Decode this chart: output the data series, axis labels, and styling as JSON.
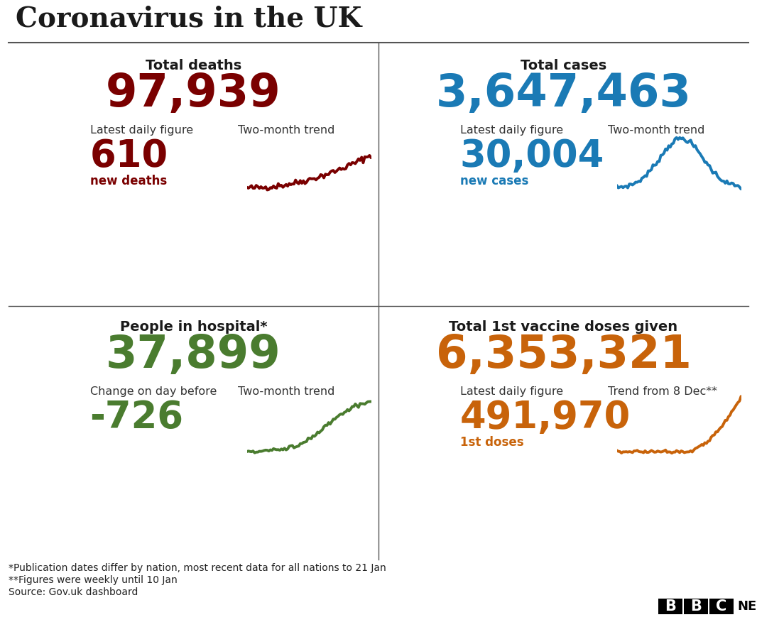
{
  "title": "Coronavirus in the UK",
  "bg_color": "#ffffff",
  "title_color": "#1a1a1a",
  "divider_color": "#555555",
  "top_left": {
    "header": "Total deaths",
    "total": "97,939",
    "total_color": "#7a0000",
    "label1": "Latest daily figure",
    "label2": "Two-month trend",
    "daily_value": "610",
    "daily_label": "new deaths",
    "daily_color": "#7a0000",
    "trend_color": "#7a0000"
  },
  "top_right": {
    "header": "Total cases",
    "total": "3,647,463",
    "total_color": "#1a7ab5",
    "label1": "Latest daily figure",
    "label2": "Two-month trend",
    "daily_value": "30,004",
    "daily_label": "new cases",
    "daily_color": "#1a7ab5",
    "trend_color": "#1a7ab5"
  },
  "bot_left": {
    "header": "People in hospital*",
    "total": "37,899",
    "total_color": "#4a7c2f",
    "label1": "Change on day before",
    "label2": "Two-month trend",
    "daily_value": "-726",
    "daily_label": "",
    "daily_color": "#4a7c2f",
    "trend_color": "#4a7c2f"
  },
  "bot_right": {
    "header": "Total 1st vaccine doses given",
    "total": "6,353,321",
    "total_color": "#c8630a",
    "label1": "Latest daily figure",
    "label2": "Trend from 8 Dec**",
    "daily_value": "491,970",
    "daily_label": "1st doses",
    "daily_color": "#c8630a",
    "trend_color": "#c8630a"
  },
  "footnote1": "*Publication dates differ by nation, most recent data for all nations to 21 Jan",
  "footnote2": "**Figures were weekly until 10 Jan",
  "footnote3": "Source: Gov.uk dashboard",
  "footnote_color": "#222222"
}
